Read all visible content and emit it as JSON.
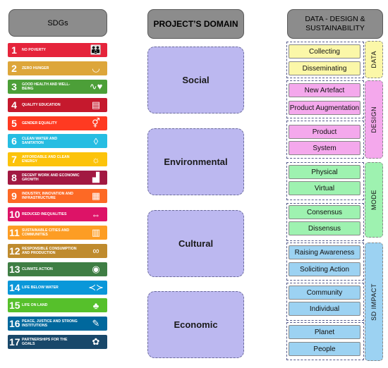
{
  "headers": {
    "sdgs": "SDGs",
    "domain": "PROJECT’S DOMAIN",
    "data": "DATA - DESIGN & SUSTAINABILITY"
  },
  "sdgs": [
    {
      "num": "1",
      "name": "NO POVERTY",
      "color": "#e5243b",
      "icon": "people-icon"
    },
    {
      "num": "2",
      "name": "ZERO HUNGER",
      "color": "#dda63a",
      "icon": "bowl-icon"
    },
    {
      "num": "3",
      "name": "GOOD HEALTH AND WELL-BEING",
      "color": "#4c9f38",
      "icon": "heartbeat-icon"
    },
    {
      "num": "4",
      "name": "QUALITY EDUCATION",
      "color": "#c5192d",
      "icon": "book-icon"
    },
    {
      "num": "5",
      "name": "GENDER EQUALITY",
      "color": "#ff3a21",
      "icon": "gender-icon"
    },
    {
      "num": "6",
      "name": "CLEAN WATER AND SANITATION",
      "color": "#26bde2",
      "icon": "water-drop-icon"
    },
    {
      "num": "7",
      "name": "AFFORDABLE AND CLEAN ENERGY",
      "color": "#fcc30b",
      "icon": "sun-icon"
    },
    {
      "num": "8",
      "name": "DECENT WORK AND ECONOMIC GROWTH",
      "color": "#a21942",
      "icon": "growth-chart-icon"
    },
    {
      "num": "9",
      "name": "INDUSTRY, INNOVATION AND INFRASTRUCTURE",
      "color": "#fd6925",
      "icon": "cubes-icon"
    },
    {
      "num": "10",
      "name": "REDUCED INEQUALITIES",
      "color": "#dd1367",
      "icon": "equal-icon"
    },
    {
      "num": "11",
      "name": "SUSTAINABLE CITIES AND COMMUNITIES",
      "color": "#fd9d24",
      "icon": "buildings-icon"
    },
    {
      "num": "12",
      "name": "RESPONSIBLE CONSUMPTION AND PRODUCTION",
      "color": "#bf8b2e",
      "icon": "infinity-icon"
    },
    {
      "num": "13",
      "name": "CLIMATE ACTION",
      "color": "#3f7e44",
      "icon": "eye-globe-icon"
    },
    {
      "num": "14",
      "name": "LIFE BELOW WATER",
      "color": "#0a97d9",
      "icon": "fish-icon"
    },
    {
      "num": "15",
      "name": "LIFE ON LAND",
      "color": "#56c02b",
      "icon": "tree-icon"
    },
    {
      "num": "16",
      "name": "PEACE, JUSTICE AND STRONG INSTITUTIONS",
      "color": "#00689d",
      "icon": "dove-icon"
    },
    {
      "num": "17",
      "name": "PARTNERSHIPS FOR THE GOALS",
      "color": "#19486a",
      "icon": "flower-rings-icon"
    }
  ],
  "domains": [
    "Social",
    "Environmental",
    "Cultural",
    "Economic"
  ],
  "categories": {
    "data": "DATA",
    "design": "DESIGN",
    "mode": "MODE",
    "impact": "SD IMPACT"
  },
  "items": {
    "collecting": "Collecting",
    "disseminating": "Disseminating",
    "new_artefact": "New Artefact",
    "product_augmentation": "Product Augmentation",
    "product": "Product",
    "system": "System",
    "physical": "Physical",
    "virtual": "Virtual",
    "consensus": "Consensus",
    "dissensus": "Dissensus",
    "raising_awareness": "Raising Awareness",
    "soliciting_action": "Soliciting Action",
    "community": "Community",
    "individual": "Individual",
    "planet": "Planet",
    "people": "People"
  },
  "colors": {
    "data": "#fbf7a8",
    "design": "#f4a8ec",
    "mode": "#9ef2b0",
    "impact": "#9cd2f2",
    "domain": "#bcb8f0"
  }
}
